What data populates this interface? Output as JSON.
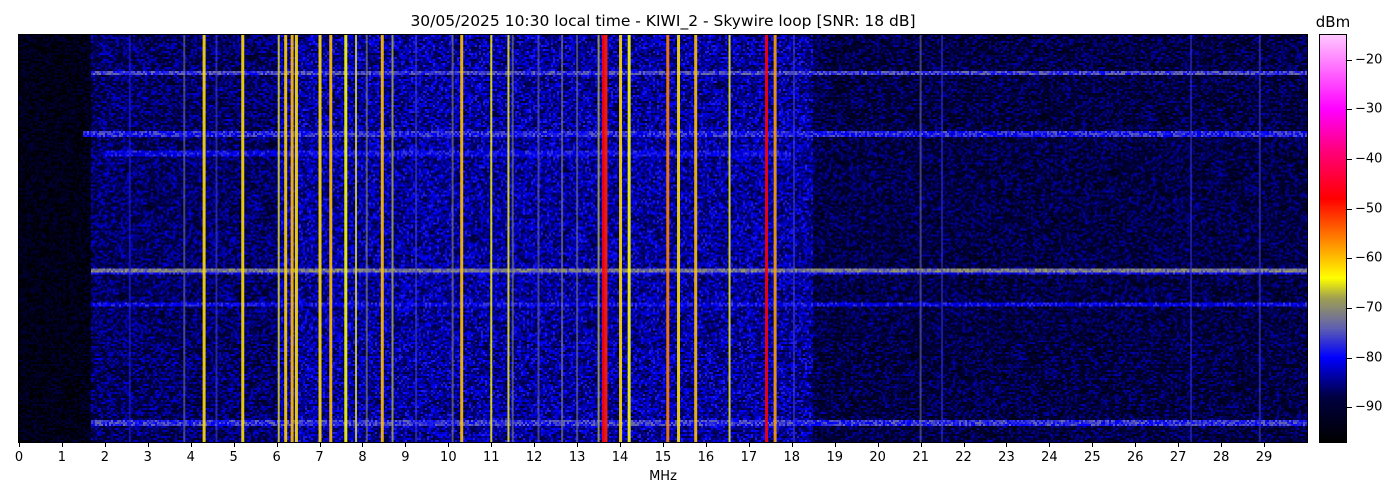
{
  "chart_data": {
    "type": "heatmap",
    "title": "30/05/2025 10:30 local time - KIWI_2 - Skywire loop [SNR: 18 dB]",
    "xlabel": "MHz",
    "xlim": [
      0,
      30
    ],
    "xticks": [
      0,
      1,
      2,
      3,
      4,
      5,
      6,
      7,
      8,
      9,
      10,
      11,
      12,
      13,
      14,
      15,
      16,
      17,
      18,
      19,
      20,
      21,
      22,
      23,
      24,
      25,
      26,
      27,
      28,
      29
    ],
    "colorbar": {
      "label": "dBm",
      "range": [
        -97,
        -15
      ],
      "ticks": [
        -20,
        -30,
        -40,
        -50,
        -60,
        -70,
        -80,
        -90
      ],
      "colormap": [
        [
          -97,
          "#000000"
        ],
        [
          -88,
          "#000040"
        ],
        [
          -80,
          "#0000ff"
        ],
        [
          -74,
          "#6060b0"
        ],
        [
          -68,
          "#a0a050"
        ],
        [
          -64,
          "#ffff00"
        ],
        [
          -58,
          "#ffa000"
        ],
        [
          -48,
          "#ff0000"
        ],
        [
          -38,
          "#ff0080"
        ],
        [
          -30,
          "#ff00ff"
        ],
        [
          -15,
          "#ffc8ff"
        ]
      ]
    },
    "noise_floor": [
      {
        "from": 0,
        "to": 1.7,
        "dBm": -94
      },
      {
        "from": 1.7,
        "to": 6,
        "dBm": -87
      },
      {
        "from": 6,
        "to": 18.5,
        "dBm": -84
      },
      {
        "from": 18.5,
        "to": 30,
        "dBm": -89
      }
    ],
    "carriers": [
      {
        "mhz": 2.58,
        "dBm": -78
      },
      {
        "mhz": 3.85,
        "dBm": -72
      },
      {
        "mhz": 4.3,
        "dBm": -62
      },
      {
        "mhz": 4.6,
        "dBm": -76
      },
      {
        "mhz": 5.2,
        "dBm": -62
      },
      {
        "mhz": 6.05,
        "dBm": -66
      },
      {
        "mhz": 6.2,
        "dBm": -61
      },
      {
        "mhz": 6.35,
        "dBm": -60
      },
      {
        "mhz": 6.45,
        "dBm": -62
      },
      {
        "mhz": 7.0,
        "dBm": -62
      },
      {
        "mhz": 7.25,
        "dBm": -60
      },
      {
        "mhz": 7.6,
        "dBm": -64
      },
      {
        "mhz": 7.85,
        "dBm": -66
      },
      {
        "mhz": 8.1,
        "dBm": -70
      },
      {
        "mhz": 8.45,
        "dBm": -60
      },
      {
        "mhz": 8.7,
        "dBm": -68
      },
      {
        "mhz": 9.25,
        "dBm": -76
      },
      {
        "mhz": 10.1,
        "dBm": -70
      },
      {
        "mhz": 10.3,
        "dBm": -60
      },
      {
        "mhz": 11.0,
        "dBm": -65
      },
      {
        "mhz": 11.4,
        "dBm": -65
      },
      {
        "mhz": 11.5,
        "dBm": -70
      },
      {
        "mhz": 12.1,
        "dBm": -73
      },
      {
        "mhz": 12.65,
        "dBm": -70
      },
      {
        "mhz": 13.0,
        "dBm": -72
      },
      {
        "mhz": 13.5,
        "dBm": -68
      },
      {
        "mhz": 13.6,
        "dBm": -47
      },
      {
        "mhz": 13.66,
        "dBm": -50
      },
      {
        "mhz": 14.0,
        "dBm": -62
      },
      {
        "mhz": 14.2,
        "dBm": -64
      },
      {
        "mhz": 15.1,
        "dBm": -56
      },
      {
        "mhz": 15.35,
        "dBm": -62
      },
      {
        "mhz": 15.75,
        "dBm": -60
      },
      {
        "mhz": 16.55,
        "dBm": -65
      },
      {
        "mhz": 17.4,
        "dBm": -48
      },
      {
        "mhz": 17.6,
        "dBm": -58
      },
      {
        "mhz": 18.05,
        "dBm": -76
      },
      {
        "mhz": 21.0,
        "dBm": -73
      },
      {
        "mhz": 21.5,
        "dBm": -77
      },
      {
        "mhz": 27.3,
        "dBm": -77
      },
      {
        "mhz": 28.9,
        "dBm": -76
      }
    ],
    "interference_rows": [
      {
        "row": 0.09,
        "dBm": -76,
        "from": 1.7,
        "to": 30
      },
      {
        "row": 0.24,
        "dBm": -78,
        "from": 1.5,
        "to": 30
      },
      {
        "row": 0.29,
        "dBm": -80,
        "from": 2,
        "to": 18
      },
      {
        "row": 0.58,
        "dBm": -80,
        "from": 1.7,
        "to": 30
      },
      {
        "row": 0.575,
        "dBm": -72,
        "from": 1.7,
        "to": 30
      },
      {
        "row": 0.66,
        "dBm": -80,
        "from": 1.7,
        "to": 30
      },
      {
        "row": 0.95,
        "dBm": -77,
        "from": 1.7,
        "to": 30
      }
    ]
  }
}
